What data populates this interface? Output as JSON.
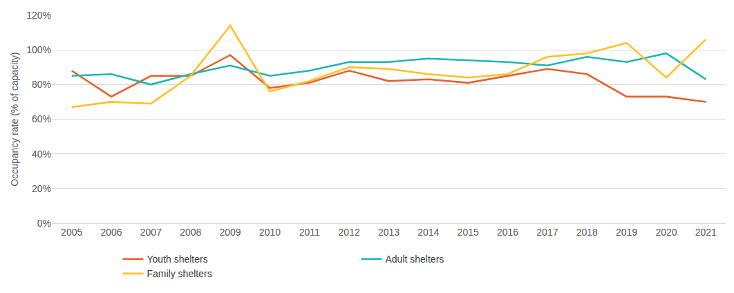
{
  "chart_data": {
    "type": "line",
    "y_label": "Occupancy rate (% of capacity)",
    "categories": [
      "2005",
      "2006",
      "2007",
      "2008",
      "2009",
      "2010",
      "2011",
      "2012",
      "2013",
      "2014",
      "2015",
      "2016",
      "2017",
      "2018",
      "2019",
      "2020",
      "2021"
    ],
    "series": [
      {
        "name": "Youth shelters",
        "color": "#E8612C",
        "values": [
          88,
          73,
          85,
          85,
          97,
          78,
          81,
          88,
          82,
          83,
          81,
          85,
          89,
          86,
          73,
          73,
          70
        ]
      },
      {
        "name": "Adult shelters",
        "color": "#1DB5B5",
        "values": [
          85,
          86,
          80,
          86,
          91,
          85,
          88,
          93,
          93,
          95,
          94,
          93,
          91,
          96,
          93,
          98,
          83
        ]
      },
      {
        "name": "Family shelters",
        "color": "#FFC125",
        "values": [
          67,
          70,
          69,
          85,
          114,
          76,
          82,
          90,
          89,
          86,
          84,
          86,
          96,
          98,
          104,
          84,
          106
        ]
      }
    ],
    "ylim": [
      0,
      120
    ],
    "yticks": [
      {
        "value": 0,
        "label": "0%"
      },
      {
        "value": 20,
        "label": "20%"
      },
      {
        "value": 40,
        "label": "40%"
      },
      {
        "value": 60,
        "label": "60%"
      },
      {
        "value": 80,
        "label": "80%"
      },
      {
        "value": 100,
        "label": "100%"
      },
      {
        "value": 120,
        "label": "120%"
      }
    ],
    "grid": true,
    "legend": "bottom"
  }
}
